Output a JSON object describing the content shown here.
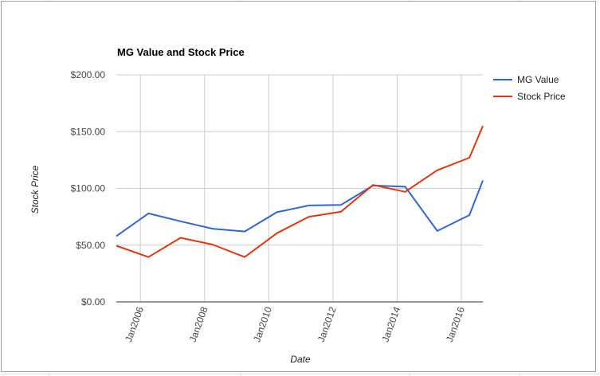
{
  "chart_data": {
    "type": "line",
    "title": "MG Value and Stock Price",
    "xlabel": "Date",
    "ylabel": "Stock Price",
    "ylim": [
      0,
      200
    ],
    "y_ticks": [
      "$200.00",
      "$150.00",
      "$100.00",
      "$50.00",
      "$0.00"
    ],
    "y_tick_values": [
      200,
      150,
      100,
      50,
      0
    ],
    "x_ticks": [
      "Jan2006",
      "Jan2008",
      "Jan2010",
      "Jan2012",
      "Jan2014",
      "Jan2016"
    ],
    "x_tick_values": [
      2006.0,
      2008.0,
      2010.0,
      2012.0,
      2014.0,
      2016.0
    ],
    "xlim": [
      2005.25,
      2016.67
    ],
    "grid": true,
    "legend_position": "right",
    "series": [
      {
        "name": "MG Value",
        "color": "#3366cc",
        "x": [
          2005.25,
          2006.25,
          2007.25,
          2008.25,
          2009.25,
          2010.25,
          2011.25,
          2012.25,
          2013.25,
          2014.25,
          2015.25,
          2016.25,
          2016.67
        ],
        "y": [
          58,
          78,
          71,
          64.5,
          62,
          79,
          85,
          85.5,
          102.5,
          101.5,
          62.5,
          76.5,
          107
        ]
      },
      {
        "name": "Stock Price",
        "color": "#dc3912",
        "x": [
          2005.25,
          2006.25,
          2007.25,
          2008.25,
          2009.25,
          2010.25,
          2011.25,
          2012.25,
          2013.25,
          2014.25,
          2015.25,
          2016.25,
          2016.67
        ],
        "y": [
          49.5,
          39.5,
          56.5,
          50.5,
          39.5,
          60.5,
          75,
          79.5,
          103,
          97,
          116,
          127,
          155
        ]
      }
    ]
  }
}
